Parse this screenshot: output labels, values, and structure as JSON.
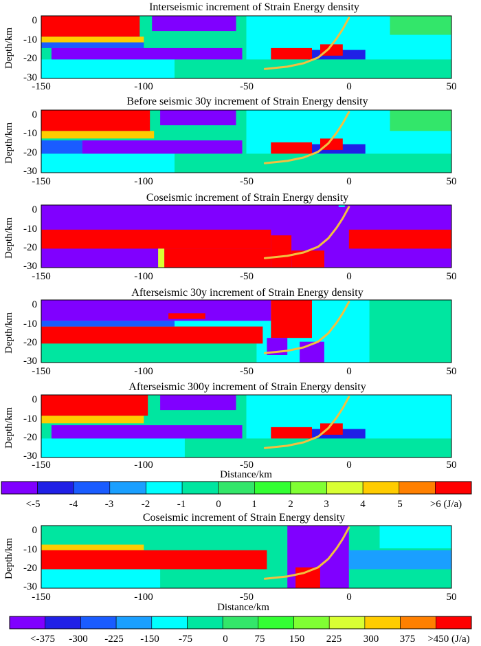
{
  "figure": {
    "colors": {
      "c0": "#8000ff",
      "c1": "#2020e6",
      "c2": "#1a5cff",
      "c3": "#1a9fff",
      "c4": "#00ffff",
      "c5": "#00e6a0",
      "c6": "#33e66a",
      "c7": "#33ff33",
      "c8": "#80ff33",
      "c9": "#d9ff33",
      "c10": "#ffcc00",
      "c11": "#ff8000",
      "c12": "#ff0000",
      "fault": "#f2c040"
    }
  },
  "chart_data": [
    {
      "type": "heatmap",
      "title": "Interseismic increment of Strain Energy density",
      "ylabel": "Depth/km",
      "xlabel": "",
      "xlim": [
        -150,
        50
      ],
      "ylim": [
        -31,
        2
      ],
      "xticks": [
        "-150",
        "-100",
        "-50",
        "0",
        "50"
      ],
      "yticks": [
        "0",
        "-10",
        "-20",
        "-30"
      ],
      "fault_trace": [
        [
          -41,
          -26
        ],
        [
          -30,
          -24.8
        ],
        [
          -22,
          -23
        ],
        [
          -15,
          -20
        ],
        [
          -10,
          -15.5
        ],
        [
          -6,
          -10
        ],
        [
          -3,
          -5
        ],
        [
          0,
          1
        ]
      ],
      "regions": [
        {
          "x0": -150,
          "x1": 50,
          "y0": -31,
          "y1": 2,
          "level": 5
        },
        {
          "x0": -150,
          "x1": -85,
          "y0": -31,
          "y1": -21,
          "level": 4
        },
        {
          "x0": -50,
          "x1": 50,
          "y0": -21,
          "y1": 2,
          "level": 4
        },
        {
          "x0": -150,
          "x1": -100,
          "y0": -12,
          "y1": -9,
          "level": 10
        },
        {
          "x0": -150,
          "x1": -100,
          "y0": -15,
          "y1": -12,
          "level": 2
        },
        {
          "x0": -150,
          "x1": -102,
          "y0": -9,
          "y1": 2,
          "level": 12
        },
        {
          "x0": -96,
          "x1": -55,
          "y0": -6,
          "y1": 2,
          "level": 0
        },
        {
          "x0": -145,
          "x1": -52,
          "y0": -21,
          "y1": -15,
          "level": 0
        },
        {
          "x0": -20,
          "x1": 8,
          "y0": -21,
          "y1": -16,
          "level": 1
        },
        {
          "x0": -38,
          "x1": -18,
          "y0": -21,
          "y1": -15,
          "level": 12
        },
        {
          "x0": -14,
          "x1": -3,
          "y0": -19,
          "y1": -13,
          "level": 12
        },
        {
          "x0": 20,
          "x1": 50,
          "y0": -8,
          "y1": 2,
          "level": 6
        }
      ]
    },
    {
      "type": "heatmap",
      "title": "Before seismic 30y increment of Strain Energy density",
      "ylabel": "Depth/km",
      "xlabel": "",
      "xlim": [
        -150,
        50
      ],
      "ylim": [
        -31,
        2
      ],
      "xticks": [
        "-150",
        "-100",
        "-50",
        "0",
        "50"
      ],
      "yticks": [
        "0",
        "-10",
        "-20",
        "-30"
      ],
      "fault_trace": [
        [
          -41,
          -26
        ],
        [
          -30,
          -24.8
        ],
        [
          -22,
          -23
        ],
        [
          -15,
          -20
        ],
        [
          -10,
          -15.5
        ],
        [
          -6,
          -10
        ],
        [
          -3,
          -5
        ],
        [
          0,
          1
        ]
      ],
      "regions": [
        {
          "x0": -150,
          "x1": 50,
          "y0": -31,
          "y1": 2,
          "level": 5
        },
        {
          "x0": -150,
          "x1": -85,
          "y0": -31,
          "y1": -21,
          "level": 4
        },
        {
          "x0": -50,
          "x1": 50,
          "y0": -21,
          "y1": 2,
          "level": 4
        },
        {
          "x0": -150,
          "x1": -95,
          "y0": -13,
          "y1": -9,
          "level": 10
        },
        {
          "x0": -150,
          "x1": -97,
          "y0": -9,
          "y1": 2,
          "level": 12
        },
        {
          "x0": -92,
          "x1": -55,
          "y0": -6,
          "y1": 2,
          "level": 0
        },
        {
          "x0": -150,
          "x1": -130,
          "y0": -21,
          "y1": -14,
          "level": 2
        },
        {
          "x0": -130,
          "x1": -52,
          "y0": -21,
          "y1": -14,
          "level": 0
        },
        {
          "x0": -20,
          "x1": 8,
          "y0": -21,
          "y1": -16,
          "level": 1
        },
        {
          "x0": -38,
          "x1": -18,
          "y0": -21,
          "y1": -15,
          "level": 12
        },
        {
          "x0": -14,
          "x1": -3,
          "y0": -19,
          "y1": -13,
          "level": 12
        },
        {
          "x0": 20,
          "x1": 50,
          "y0": -9,
          "y1": 2,
          "level": 6
        }
      ]
    },
    {
      "type": "heatmap",
      "title": "Coseismic increment of Strain Energy density",
      "ylabel": "Depth/km",
      "xlabel": "",
      "xlim": [
        -150,
        50
      ],
      "ylim": [
        -31,
        2
      ],
      "xticks": [
        "-150",
        "-100",
        "-50",
        "0",
        "50"
      ],
      "yticks": [
        "0",
        "-10",
        "-20",
        "-30"
      ],
      "fault_trace": [
        [
          -41,
          -26
        ],
        [
          -30,
          -24.8
        ],
        [
          -22,
          -23
        ],
        [
          -15,
          -20
        ],
        [
          -10,
          -15.5
        ],
        [
          -6,
          -10
        ],
        [
          -3,
          -5
        ],
        [
          0,
          1
        ]
      ],
      "regions": [
        {
          "x0": -150,
          "x1": 50,
          "y0": -31,
          "y1": 2,
          "level": 0
        },
        {
          "x0": -150,
          "x1": -38,
          "y0": -21,
          "y1": -11,
          "level": 12
        },
        {
          "x0": -90,
          "x1": -38,
          "y0": -31,
          "y1": -21,
          "level": 12
        },
        {
          "x0": -93,
          "x1": -90,
          "y0": -31,
          "y1": -21,
          "level": 9
        },
        {
          "x0": -38,
          "x1": -28,
          "y0": -31,
          "y1": -14,
          "level": 12
        },
        {
          "x0": -28,
          "x1": -12,
          "y0": -31,
          "y1": -22,
          "level": 12
        },
        {
          "x0": 0,
          "x1": 50,
          "y0": -21,
          "y1": -11,
          "level": 12
        },
        {
          "x0": -5,
          "x1": -2,
          "y0": 1,
          "y1": 2,
          "level": 4
        }
      ]
    },
    {
      "type": "heatmap",
      "title": "Afterseismic 30y increment of Strain Energy density",
      "ylabel": "Depth/km",
      "xlabel": "",
      "xlim": [
        -150,
        50
      ],
      "ylim": [
        -31,
        2
      ],
      "xticks": [
        "-150",
        "-100",
        "-50",
        "0",
        "50"
      ],
      "yticks": [
        "0",
        "-10",
        "-20",
        "-30"
      ],
      "fault_trace": [
        [
          -41,
          -26
        ],
        [
          -30,
          -24.8
        ],
        [
          -22,
          -23
        ],
        [
          -15,
          -20
        ],
        [
          -10,
          -15.5
        ],
        [
          -6,
          -10
        ],
        [
          -3,
          -5
        ],
        [
          0,
          1
        ]
      ],
      "regions": [
        {
          "x0": -150,
          "x1": 50,
          "y0": -31,
          "y1": 2,
          "level": 4
        },
        {
          "x0": -150,
          "x1": -45,
          "y0": -31,
          "y1": -21,
          "level": 5
        },
        {
          "x0": -150,
          "x1": -42,
          "y0": -21,
          "y1": -12,
          "level": 12
        },
        {
          "x0": -150,
          "x1": -85,
          "y0": -12,
          "y1": -9,
          "level": 2
        },
        {
          "x0": -150,
          "x1": -38,
          "y0": -9,
          "y1": 2,
          "level": 0
        },
        {
          "x0": -88,
          "x1": -70,
          "y0": -8,
          "y1": -5,
          "level": 12
        },
        {
          "x0": -38,
          "x1": -18,
          "y0": -18,
          "y1": 2,
          "level": 12
        },
        {
          "x0": -40,
          "x1": -30,
          "y0": -27,
          "y1": -18,
          "level": 0
        },
        {
          "x0": -24,
          "x1": -12,
          "y0": -31,
          "y1": -20,
          "level": 0
        },
        {
          "x0": 10,
          "x1": 50,
          "y0": -31,
          "y1": 2,
          "level": 5
        }
      ]
    },
    {
      "type": "heatmap",
      "title": "Afterseismic 300y increment of Strain Energy density",
      "ylabel": "Depth/km",
      "xlabel": "Distance/km",
      "xlim": [
        -150,
        50
      ],
      "ylim": [
        -31,
        2
      ],
      "xticks": [
        "-150",
        "-100",
        "-50",
        "0",
        "50"
      ],
      "yticks": [
        "0",
        "-10",
        "-20",
        "-30"
      ],
      "fault_trace": [
        [
          -41,
          -26
        ],
        [
          -30,
          -24.8
        ],
        [
          -22,
          -23
        ],
        [
          -15,
          -20
        ],
        [
          -10,
          -15.5
        ],
        [
          -6,
          -10
        ],
        [
          -3,
          -5
        ],
        [
          0,
          1
        ]
      ],
      "regions": [
        {
          "x0": -150,
          "x1": 50,
          "y0": -31,
          "y1": 2,
          "level": 5
        },
        {
          "x0": -150,
          "x1": -80,
          "y0": -31,
          "y1": -21,
          "level": 4
        },
        {
          "x0": -50,
          "x1": 50,
          "y0": -21,
          "y1": 2,
          "level": 4
        },
        {
          "x0": -150,
          "x1": -100,
          "y0": -13,
          "y1": -9,
          "level": 10
        },
        {
          "x0": -150,
          "x1": -98,
          "y0": -9,
          "y1": 2,
          "level": 12
        },
        {
          "x0": -92,
          "x1": -55,
          "y0": -6,
          "y1": 2,
          "level": 0
        },
        {
          "x0": -145,
          "x1": -52,
          "y0": -21,
          "y1": -14,
          "level": 0
        },
        {
          "x0": -20,
          "x1": 8,
          "y0": -21,
          "y1": -16,
          "level": 1
        },
        {
          "x0": -38,
          "x1": -18,
          "y0": -21,
          "y1": -15,
          "level": 12
        },
        {
          "x0": -14,
          "x1": -3,
          "y0": -19,
          "y1": -13,
          "level": 12
        }
      ]
    },
    {
      "type": "heatmap",
      "title": "Coseismic increment of Strain Energy density",
      "ylabel": "Depth/km",
      "xlabel": "Distance/km",
      "xlim": [
        -150,
        50
      ],
      "ylim": [
        -31,
        2
      ],
      "xticks": [
        "-150",
        "-100",
        "-50",
        "0",
        "50"
      ],
      "yticks": [
        "0",
        "-10",
        "-20",
        "-30"
      ],
      "fault_trace": [
        [
          -41,
          -26
        ],
        [
          -30,
          -24.8
        ],
        [
          -22,
          -23
        ],
        [
          -15,
          -20
        ],
        [
          -10,
          -15.5
        ],
        [
          -6,
          -10
        ],
        [
          -3,
          -5
        ],
        [
          0,
          1
        ]
      ],
      "regions": [
        {
          "x0": -150,
          "x1": 50,
          "y0": -31,
          "y1": 2,
          "level": 5
        },
        {
          "x0": -150,
          "x1": -92,
          "y0": -31,
          "y1": -21,
          "level": 4
        },
        {
          "x0": -150,
          "x1": -100,
          "y0": -11,
          "y1": -8,
          "level": 10
        },
        {
          "x0": -150,
          "x1": -40,
          "y0": -21,
          "y1": -11,
          "level": 12
        },
        {
          "x0": -30,
          "x1": 0,
          "y0": -31,
          "y1": 2,
          "level": 0
        },
        {
          "x0": -26,
          "x1": -14,
          "y0": -31,
          "y1": -20,
          "level": 12
        },
        {
          "x0": 0,
          "x1": 50,
          "y0": -21,
          "y1": -11,
          "level": 3
        },
        {
          "x0": 15,
          "x1": 50,
          "y0": -10,
          "y1": 2,
          "level": 4
        },
        {
          "x0": -62,
          "x1": -45,
          "y0": -31,
          "y1": -21,
          "level": 5
        }
      ]
    }
  ],
  "colorbars": [
    {
      "labels": [
        "<-5",
        "-4",
        "-3",
        "-2",
        "-1",
        "0",
        "1",
        "2",
        "3",
        "4",
        "5",
        ">6 (J/a)"
      ]
    },
    {
      "labels": [
        "<-375",
        "-300",
        "-225",
        "-150",
        "-75",
        "0",
        "75",
        "150",
        "225",
        "300",
        "375",
        ">450 (J/a)"
      ]
    }
  ]
}
